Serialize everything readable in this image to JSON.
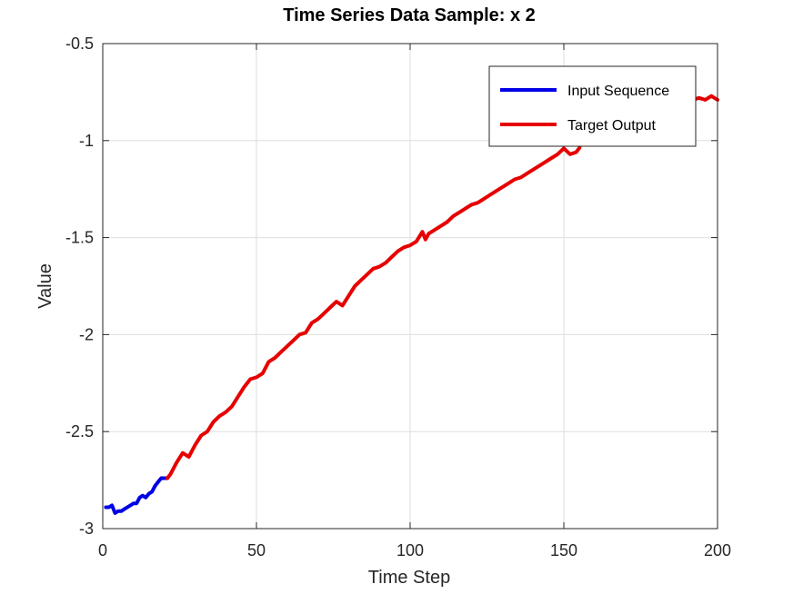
{
  "chart_data": {
    "type": "line",
    "title": "Time Series Data Sample: x  2",
    "xlabel": "Time Step",
    "ylabel": "Value",
    "xlim": [
      0,
      200
    ],
    "ylim": [
      -3,
      -0.5
    ],
    "xticks": [
      0,
      50,
      100,
      150,
      200
    ],
    "xtick_labels": [
      "0",
      "50",
      "100",
      "150",
      "200"
    ],
    "yticks": [
      -3,
      -2.5,
      -2,
      -1.5,
      -1,
      -0.5
    ],
    "ytick_labels": [
      "-3",
      "-2.5",
      "-2",
      "-1.5",
      "-1",
      "-0.5"
    ],
    "grid": true,
    "legend_position": "top-right",
    "series": [
      {
        "name": "Input Sequence",
        "color": "#0000e6",
        "x": [
          1,
          2,
          3,
          4,
          5,
          6,
          7,
          8,
          9,
          10,
          11,
          12,
          13,
          14,
          15,
          16,
          17,
          18,
          19,
          20,
          21
        ],
        "y": [
          -2.89,
          -2.89,
          -2.88,
          -2.92,
          -2.91,
          -2.91,
          -2.9,
          -2.89,
          -2.88,
          -2.87,
          -2.87,
          -2.84,
          -2.83,
          -2.84,
          -2.82,
          -2.81,
          -2.78,
          -2.76,
          -2.74,
          -2.74,
          -2.74
        ]
      },
      {
        "name": "Target Output",
        "color": "#e60000",
        "x": [
          21,
          22,
          24,
          26,
          28,
          30,
          32,
          34,
          36,
          38,
          40,
          42,
          44,
          46,
          48,
          50,
          52,
          54,
          56,
          58,
          60,
          62,
          64,
          66,
          68,
          70,
          72,
          74,
          76,
          78,
          80,
          82,
          84,
          86,
          88,
          90,
          92,
          94,
          96,
          98,
          100,
          102,
          104,
          105,
          106,
          108,
          110,
          112,
          114,
          116,
          118,
          120,
          122,
          124,
          126,
          128,
          130,
          132,
          134,
          136,
          138,
          140,
          142,
          144,
          146,
          148,
          150,
          152,
          154,
          155,
          156,
          158,
          160,
          162,
          164,
          166,
          168,
          170,
          172,
          174,
          176,
          178,
          180,
          182,
          184,
          186,
          188,
          190,
          192,
          194,
          196,
          198,
          200
        ],
        "y": [
          -2.74,
          -2.72,
          -2.66,
          -2.61,
          -2.63,
          -2.57,
          -2.52,
          -2.5,
          -2.45,
          -2.42,
          -2.4,
          -2.37,
          -2.32,
          -2.27,
          -2.23,
          -2.22,
          -2.2,
          -2.14,
          -2.12,
          -2.09,
          -2.06,
          -2.03,
          -2.0,
          -1.99,
          -1.94,
          -1.92,
          -1.89,
          -1.86,
          -1.83,
          -1.85,
          -1.8,
          -1.75,
          -1.72,
          -1.69,
          -1.66,
          -1.65,
          -1.63,
          -1.6,
          -1.57,
          -1.55,
          -1.54,
          -1.52,
          -1.47,
          -1.51,
          -1.48,
          -1.46,
          -1.44,
          -1.42,
          -1.39,
          -1.37,
          -1.35,
          -1.33,
          -1.32,
          -1.3,
          -1.28,
          -1.26,
          -1.24,
          -1.22,
          -1.2,
          -1.19,
          -1.17,
          -1.15,
          -1.13,
          -1.11,
          -1.09,
          -1.07,
          -1.04,
          -1.07,
          -1.06,
          -1.04,
          -0.99,
          -0.98,
          -0.96,
          -0.96,
          -0.97,
          -0.95,
          -0.93,
          -0.91,
          -0.9,
          -0.88,
          -0.86,
          -0.85,
          -0.84,
          -0.84,
          -0.83,
          -0.82,
          -0.81,
          -0.8,
          -0.79,
          -0.78,
          -0.79,
          -0.77,
          -0.79
        ]
      }
    ]
  }
}
